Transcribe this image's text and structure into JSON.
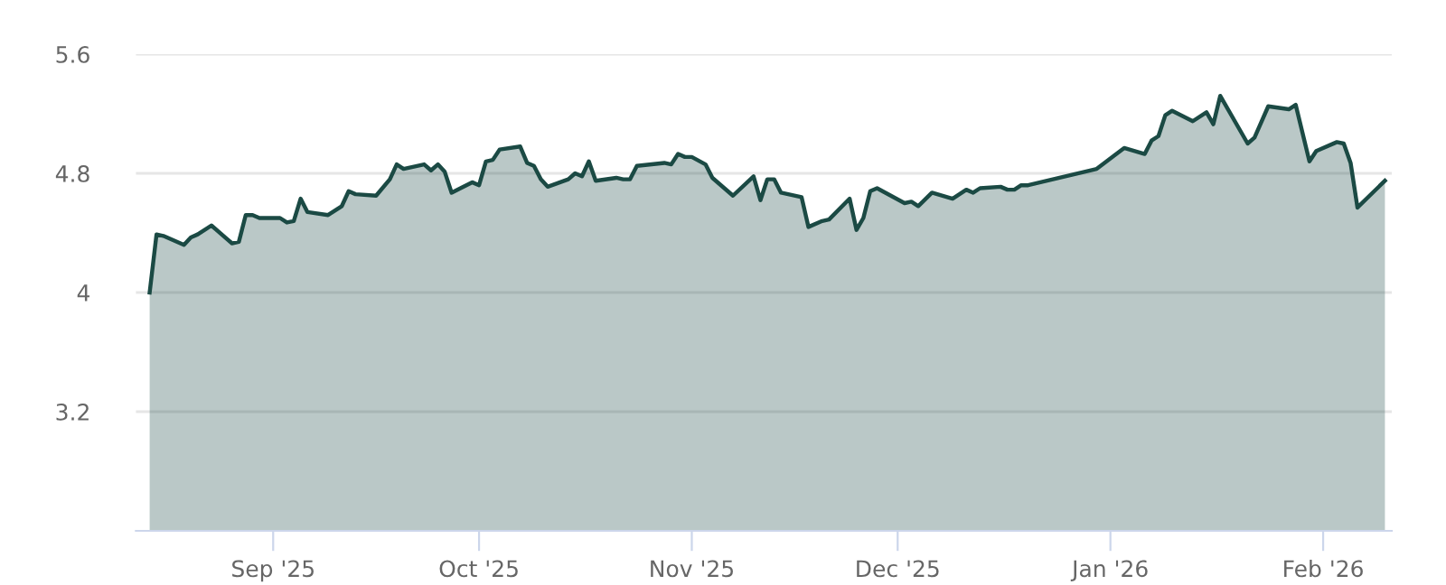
{
  "chart_data": {
    "type": "area",
    "x": [
      "2025-08-14",
      "2025-08-15",
      "2025-08-16",
      "2025-08-19",
      "2025-08-20",
      "2025-08-21",
      "2025-08-23",
      "2025-08-26",
      "2025-08-27",
      "2025-08-28",
      "2025-08-29",
      "2025-08-30",
      "2025-09-02",
      "2025-09-03",
      "2025-09-04",
      "2025-09-05",
      "2025-09-06",
      "2025-09-09",
      "2025-09-11",
      "2025-09-12",
      "2025-09-13",
      "2025-09-16",
      "2025-09-18",
      "2025-09-19",
      "2025-09-20",
      "2025-09-23",
      "2025-09-24",
      "2025-09-25",
      "2025-09-26",
      "2025-09-27",
      "2025-09-30",
      "2025-10-01",
      "2025-10-02",
      "2025-10-03",
      "2025-10-04",
      "2025-10-07",
      "2025-10-08",
      "2025-10-09",
      "2025-10-10",
      "2025-10-11",
      "2025-10-14",
      "2025-10-15",
      "2025-10-16",
      "2025-10-17",
      "2025-10-18",
      "2025-10-21",
      "2025-10-22",
      "2025-10-23",
      "2025-10-24",
      "2025-10-28",
      "2025-10-29",
      "2025-10-30",
      "2025-10-31",
      "2025-11-01",
      "2025-11-03",
      "2025-11-04",
      "2025-11-07",
      "2025-11-10",
      "2025-11-11",
      "2025-11-12",
      "2025-11-13",
      "2025-11-14",
      "2025-11-17",
      "2025-11-18",
      "2025-11-20",
      "2025-11-21",
      "2025-11-24",
      "2025-11-25",
      "2025-11-26",
      "2025-11-27",
      "2025-11-28",
      "2025-12-02",
      "2025-12-03",
      "2025-12-04",
      "2025-12-06",
      "2025-12-09",
      "2025-12-11",
      "2025-12-12",
      "2025-12-13",
      "2025-12-16",
      "2025-12-17",
      "2025-12-18",
      "2025-12-19",
      "2025-12-20",
      "2025-12-30",
      "2026-01-03",
      "2026-01-06",
      "2026-01-07",
      "2026-01-08",
      "2026-01-09",
      "2026-01-10",
      "2026-01-13",
      "2026-01-15",
      "2026-01-16",
      "2026-01-17",
      "2026-01-21",
      "2026-01-22",
      "2026-01-24",
      "2026-01-27",
      "2026-01-28",
      "2026-01-30",
      "2026-01-31",
      "2026-02-03",
      "2026-02-04",
      "2026-02-05",
      "2026-02-06",
      "2026-02-10"
    ],
    "series": [
      {
        "color": "#1b4a44",
        "values": [
          4.0,
          4.39,
          4.38,
          4.32,
          4.37,
          4.39,
          4.45,
          4.33,
          4.34,
          4.52,
          4.52,
          4.5,
          4.5,
          4.47,
          4.48,
          4.63,
          4.54,
          4.52,
          4.58,
          4.68,
          4.66,
          4.65,
          4.76,
          4.86,
          4.83,
          4.86,
          4.82,
          4.86,
          4.81,
          4.67,
          4.74,
          4.72,
          4.88,
          4.89,
          4.96,
          4.98,
          4.87,
          4.85,
          4.76,
          4.71,
          4.76,
          4.8,
          4.78,
          4.88,
          4.75,
          4.77,
          4.76,
          4.76,
          4.85,
          4.87,
          4.86,
          4.93,
          4.91,
          4.91,
          4.86,
          4.77,
          4.65,
          4.78,
          4.62,
          4.76,
          4.76,
          4.67,
          4.64,
          4.44,
          4.48,
          4.49,
          4.63,
          4.42,
          4.5,
          4.68,
          4.7,
          4.6,
          4.61,
          4.58,
          4.67,
          4.63,
          4.69,
          4.67,
          4.7,
          4.71,
          4.69,
          4.69,
          4.72,
          4.72,
          4.83,
          4.97,
          4.93,
          5.02,
          5.05,
          5.19,
          5.22,
          5.15,
          5.21,
          5.13,
          5.32,
          5.0,
          5.04,
          5.25,
          5.23,
          5.26,
          4.88,
          4.95,
          5.01,
          5.0,
          4.87,
          4.57,
          4.75
        ]
      }
    ],
    "xlim": [
      "2025-08-12",
      "2026-02-11"
    ],
    "xticks": [
      {
        "value": "2025-09-01",
        "label": "Sep '25"
      },
      {
        "value": "2025-10-01",
        "label": "Oct '25"
      },
      {
        "value": "2025-11-01",
        "label": "Nov '25"
      },
      {
        "value": "2025-12-01",
        "label": "Dec '25"
      },
      {
        "value": "2026-01-01",
        "label": "Jan '26"
      },
      {
        "value": "2026-02-01",
        "label": "Feb '26"
      }
    ],
    "ylim": [
      2.4,
      5.6
    ],
    "yticks": [
      3.2,
      4,
      4.8,
      5.6
    ],
    "grid": "y",
    "legend": false,
    "line_style": "solid",
    "marker": "none"
  }
}
